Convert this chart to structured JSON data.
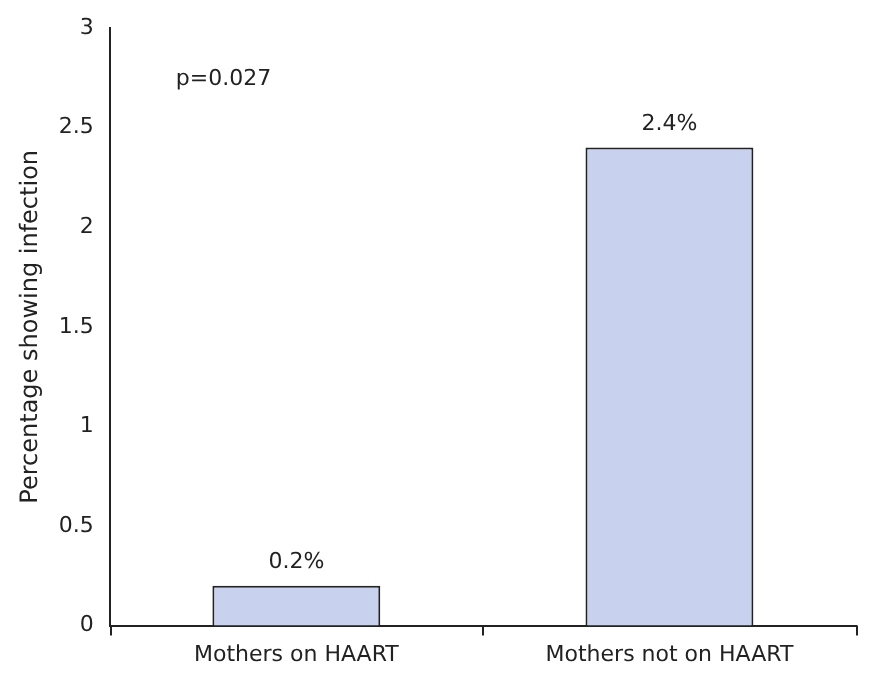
{
  "chart_data": {
    "type": "bar",
    "ylabel": "Percentage showing infection",
    "categories": [
      "Mothers on HAART",
      "Mothers not on HAART"
    ],
    "values": [
      0.2,
      2.4
    ],
    "color": "#c8d2ee",
    "value_labels": [
      "0.2%",
      "2.4%"
    ],
    "ylim": [
      0,
      3
    ],
    "yticks": [
      0,
      0.5,
      1,
      1.5,
      2,
      2.5,
      3
    ],
    "grid": false,
    "legend": false,
    "annotations": [
      "p=0.027"
    ]
  }
}
